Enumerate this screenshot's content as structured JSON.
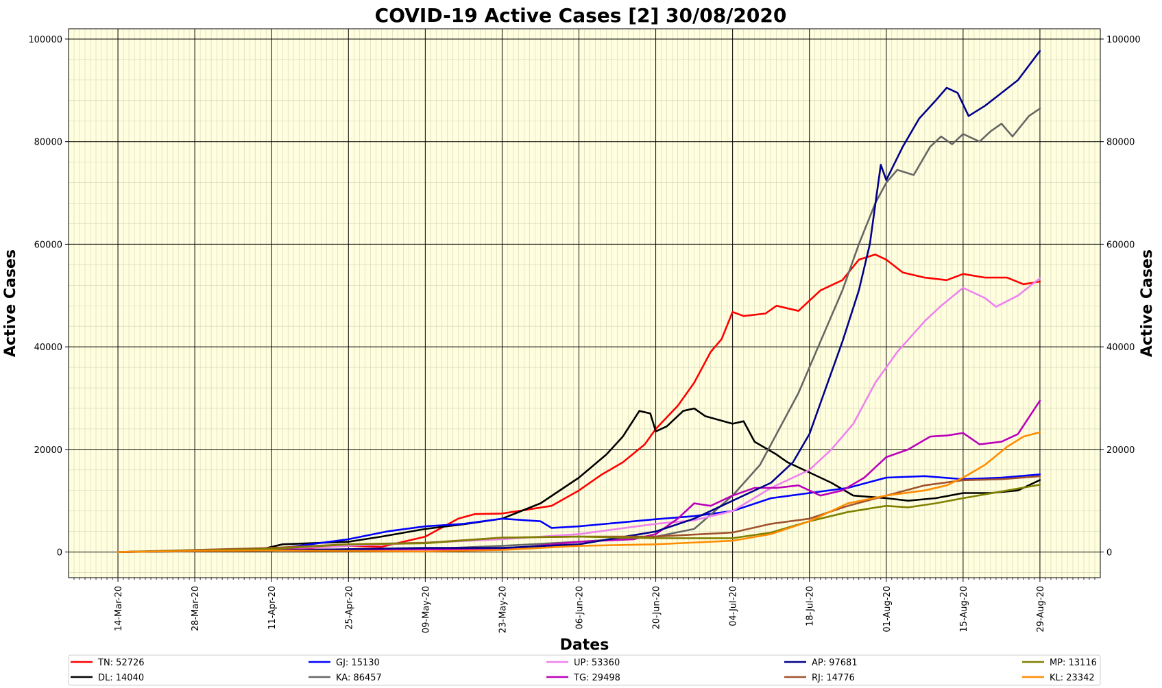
{
  "chart_data": {
    "type": "line",
    "title": "COVID-19 Active Cases [2] 30/08/2020",
    "xlabel": "Dates",
    "ylabel": "Active Cases",
    "ylabel_right": "Active Cases",
    "x_start": "2020-03-14",
    "x_end": "2020-08-29",
    "x_tick_labels": [
      "14-Mar-20",
      "28-Mar-20",
      "11-Apr-20",
      "25-Apr-20",
      "09-May-20",
      "23-May-20",
      "06-Jun-20",
      "20-Jun-20",
      "04-Jul-20",
      "18-Jul-20",
      "01-Aug-20",
      "15-Aug-20",
      "29-Aug-20"
    ],
    "y_ticks": [
      0,
      20000,
      40000,
      60000,
      80000,
      100000
    ],
    "ylim": [
      -5000,
      102000
    ],
    "background": "#ffffe0",
    "grid": true,
    "legend_position": "bottom",
    "series": [
      {
        "name": "TN: 52726",
        "color": "#ff0000",
        "points": [
          [
            "2020-03-14",
            0
          ],
          [
            "2020-04-11",
            500
          ],
          [
            "2020-04-25",
            1200
          ],
          [
            "2020-05-01",
            1000
          ],
          [
            "2020-05-09",
            3000
          ],
          [
            "2020-05-15",
            6500
          ],
          [
            "2020-05-18",
            7400
          ],
          [
            "2020-05-23",
            7500
          ],
          [
            "2020-06-01",
            9000
          ],
          [
            "2020-06-06",
            12000
          ],
          [
            "2020-06-10",
            15000
          ],
          [
            "2020-06-14",
            17500
          ],
          [
            "2020-06-18",
            21000
          ],
          [
            "2020-06-20",
            24000
          ],
          [
            "2020-06-24",
            28500
          ],
          [
            "2020-06-27",
            33000
          ],
          [
            "2020-06-30",
            39000
          ],
          [
            "2020-07-02",
            41500
          ],
          [
            "2020-07-04",
            46800
          ],
          [
            "2020-07-06",
            46000
          ],
          [
            "2020-07-10",
            46500
          ],
          [
            "2020-07-12",
            48000
          ],
          [
            "2020-07-16",
            47000
          ],
          [
            "2020-07-20",
            51000
          ],
          [
            "2020-07-24",
            53000
          ],
          [
            "2020-07-27",
            57000
          ],
          [
            "2020-07-30",
            58000
          ],
          [
            "2020-08-01",
            57000
          ],
          [
            "2020-08-04",
            54500
          ],
          [
            "2020-08-08",
            53500
          ],
          [
            "2020-08-12",
            53000
          ],
          [
            "2020-08-15",
            54200
          ],
          [
            "2020-08-19",
            53500
          ],
          [
            "2020-08-23",
            53500
          ],
          [
            "2020-08-26",
            52200
          ],
          [
            "2020-08-29",
            52726
          ]
        ]
      },
      {
        "name": "DL: 14040",
        "color": "#000000",
        "points": [
          [
            "2020-03-14",
            0
          ],
          [
            "2020-04-09",
            500
          ],
          [
            "2020-04-13",
            1500
          ],
          [
            "2020-04-25",
            2000
          ],
          [
            "2020-05-01",
            3000
          ],
          [
            "2020-05-09",
            4500
          ],
          [
            "2020-05-16",
            5400
          ],
          [
            "2020-05-23",
            6500
          ],
          [
            "2020-05-30",
            9500
          ],
          [
            "2020-06-06",
            14500
          ],
          [
            "2020-06-11",
            19000
          ],
          [
            "2020-06-14",
            22500
          ],
          [
            "2020-06-17",
            27500
          ],
          [
            "2020-06-19",
            27000
          ],
          [
            "2020-06-20",
            23500
          ],
          [
            "2020-06-22",
            24500
          ],
          [
            "2020-06-25",
            27500
          ],
          [
            "2020-06-27",
            28000
          ],
          [
            "2020-06-29",
            26500
          ],
          [
            "2020-07-04",
            25000
          ],
          [
            "2020-07-06",
            25500
          ],
          [
            "2020-07-08",
            21500
          ],
          [
            "2020-07-12",
            19000
          ],
          [
            "2020-07-14",
            17500
          ],
          [
            "2020-07-18",
            15500
          ],
          [
            "2020-07-22",
            13500
          ],
          [
            "2020-07-26",
            11000
          ],
          [
            "2020-08-01",
            10500
          ],
          [
            "2020-08-05",
            10000
          ],
          [
            "2020-08-10",
            10500
          ],
          [
            "2020-08-15",
            11500
          ],
          [
            "2020-08-20",
            11500
          ],
          [
            "2020-08-25",
            12000
          ],
          [
            "2020-08-29",
            14040
          ]
        ]
      },
      {
        "name": "GJ: 15130",
        "color": "#0000ff",
        "points": [
          [
            "2020-03-14",
            0
          ],
          [
            "2020-04-11",
            500
          ],
          [
            "2020-04-25",
            2500
          ],
          [
            "2020-05-02",
            4000
          ],
          [
            "2020-05-09",
            5000
          ],
          [
            "2020-05-16",
            5500
          ],
          [
            "2020-05-23",
            6500
          ],
          [
            "2020-05-30",
            6000
          ],
          [
            "2020-06-01",
            4700
          ],
          [
            "2020-06-06",
            5000
          ],
          [
            "2020-06-13",
            5700
          ],
          [
            "2020-06-20",
            6400
          ],
          [
            "2020-06-27",
            7000
          ],
          [
            "2020-07-04",
            8000
          ],
          [
            "2020-07-11",
            10500
          ],
          [
            "2020-07-18",
            11500
          ],
          [
            "2020-07-25",
            12500
          ],
          [
            "2020-08-01",
            14500
          ],
          [
            "2020-08-08",
            14800
          ],
          [
            "2020-08-15",
            14200
          ],
          [
            "2020-08-22",
            14500
          ],
          [
            "2020-08-29",
            15130
          ]
        ]
      },
      {
        "name": "KA: 86457",
        "color": "#666666",
        "points": [
          [
            "2020-03-14",
            0
          ],
          [
            "2020-04-11",
            300
          ],
          [
            "2020-05-09",
            600
          ],
          [
            "2020-05-23",
            1200
          ],
          [
            "2020-06-06",
            2000
          ],
          [
            "2020-06-20",
            3000
          ],
          [
            "2020-06-27",
            4500
          ],
          [
            "2020-07-04",
            11000
          ],
          [
            "2020-07-09",
            17000
          ],
          [
            "2020-07-13",
            25000
          ],
          [
            "2020-07-16",
            31000
          ],
          [
            "2020-07-20",
            41000
          ],
          [
            "2020-07-24",
            51000
          ],
          [
            "2020-07-27",
            60000
          ],
          [
            "2020-07-30",
            68000
          ],
          [
            "2020-08-01",
            72000
          ],
          [
            "2020-08-03",
            74500
          ],
          [
            "2020-08-06",
            73500
          ],
          [
            "2020-08-09",
            79000
          ],
          [
            "2020-08-11",
            81000
          ],
          [
            "2020-08-13",
            79500
          ],
          [
            "2020-08-15",
            81500
          ],
          [
            "2020-08-18",
            80000
          ],
          [
            "2020-08-20",
            82000
          ],
          [
            "2020-08-22",
            83500
          ],
          [
            "2020-08-24",
            81000
          ],
          [
            "2020-08-27",
            85000
          ],
          [
            "2020-08-29",
            86457
          ]
        ]
      },
      {
        "name": "UP: 53360",
        "color": "#ee82ee",
        "points": [
          [
            "2020-03-14",
            0
          ],
          [
            "2020-04-11",
            600
          ],
          [
            "2020-05-09",
            1800
          ],
          [
            "2020-05-23",
            2500
          ],
          [
            "2020-06-06",
            3500
          ],
          [
            "2020-06-20",
            5500
          ],
          [
            "2020-06-27",
            6200
          ],
          [
            "2020-07-04",
            8000
          ],
          [
            "2020-07-11",
            12500
          ],
          [
            "2020-07-18",
            16000
          ],
          [
            "2020-07-22",
            20000
          ],
          [
            "2020-07-26",
            25000
          ],
          [
            "2020-07-30",
            33000
          ],
          [
            "2020-08-03",
            39000
          ],
          [
            "2020-08-08",
            45000
          ],
          [
            "2020-08-11",
            48000
          ],
          [
            "2020-08-15",
            51500
          ],
          [
            "2020-08-19",
            49500
          ],
          [
            "2020-08-21",
            47800
          ],
          [
            "2020-08-25",
            50000
          ],
          [
            "2020-08-29",
            53360
          ]
        ]
      },
      {
        "name": "TG: 29498",
        "color": "#bb00bb",
        "points": [
          [
            "2020-03-14",
            0
          ],
          [
            "2020-04-11",
            500
          ],
          [
            "2020-05-09",
            500
          ],
          [
            "2020-05-23",
            500
          ],
          [
            "2020-06-06",
            2000
          ],
          [
            "2020-06-16",
            2500
          ],
          [
            "2020-06-20",
            3500
          ],
          [
            "2020-06-24",
            6500
          ],
          [
            "2020-06-27",
            9500
          ],
          [
            "2020-06-30",
            9000
          ],
          [
            "2020-07-04",
            11000
          ],
          [
            "2020-07-08",
            12500
          ],
          [
            "2020-07-12",
            12500
          ],
          [
            "2020-07-16",
            13000
          ],
          [
            "2020-07-20",
            11000
          ],
          [
            "2020-07-24",
            12000
          ],
          [
            "2020-07-28",
            14500
          ],
          [
            "2020-08-01",
            18500
          ],
          [
            "2020-08-05",
            20000
          ],
          [
            "2020-08-09",
            22500
          ],
          [
            "2020-08-12",
            22700
          ],
          [
            "2020-08-15",
            23200
          ],
          [
            "2020-08-18",
            21000
          ],
          [
            "2020-08-22",
            21500
          ],
          [
            "2020-08-25",
            23000
          ],
          [
            "2020-08-29",
            29498
          ]
        ]
      },
      {
        "name": "AP: 97681",
        "color": "#00008b",
        "points": [
          [
            "2020-03-14",
            0
          ],
          [
            "2020-04-11",
            300
          ],
          [
            "2020-05-09",
            800
          ],
          [
            "2020-05-23",
            800
          ],
          [
            "2020-06-06",
            1500
          ],
          [
            "2020-06-20",
            4000
          ],
          [
            "2020-06-27",
            6500
          ],
          [
            "2020-07-04",
            10000
          ],
          [
            "2020-07-11",
            13500
          ],
          [
            "2020-07-15",
            17500
          ],
          [
            "2020-07-18",
            23000
          ],
          [
            "2020-07-21",
            32000
          ],
          [
            "2020-07-24",
            41000
          ],
          [
            "2020-07-27",
            51000
          ],
          [
            "2020-07-29",
            60000
          ],
          [
            "2020-07-31",
            75500
          ],
          [
            "2020-08-01",
            72500
          ],
          [
            "2020-08-04",
            79000
          ],
          [
            "2020-08-07",
            84500
          ],
          [
            "2020-08-10",
            88000
          ],
          [
            "2020-08-12",
            90500
          ],
          [
            "2020-08-14",
            89500
          ],
          [
            "2020-08-16",
            85000
          ],
          [
            "2020-08-19",
            87000
          ],
          [
            "2020-08-22",
            89500
          ],
          [
            "2020-08-25",
            92000
          ],
          [
            "2020-08-29",
            97681
          ]
        ]
      },
      {
        "name": "RJ: 14776",
        "color": "#a0522d",
        "points": [
          [
            "2020-03-14",
            0
          ],
          [
            "2020-04-11",
            800
          ],
          [
            "2020-04-25",
            1500
          ],
          [
            "2020-05-09",
            1800
          ],
          [
            "2020-05-23",
            2800
          ],
          [
            "2020-06-06",
            3000
          ],
          [
            "2020-06-20",
            3000
          ],
          [
            "2020-07-04",
            3800
          ],
          [
            "2020-07-11",
            5500
          ],
          [
            "2020-07-18",
            6500
          ],
          [
            "2020-07-25",
            9000
          ],
          [
            "2020-08-01",
            11000
          ],
          [
            "2020-08-08",
            13000
          ],
          [
            "2020-08-15",
            14000
          ],
          [
            "2020-08-22",
            14200
          ],
          [
            "2020-08-29",
            14776
          ]
        ]
      },
      {
        "name": "MP: 13116",
        "color": "#808000",
        "points": [
          [
            "2020-03-14",
            0
          ],
          [
            "2020-04-11",
            600
          ],
          [
            "2020-04-25",
            1500
          ],
          [
            "2020-05-09",
            1700
          ],
          [
            "2020-05-23",
            2800
          ],
          [
            "2020-06-06",
            3000
          ],
          [
            "2020-06-20",
            2700
          ],
          [
            "2020-07-04",
            2700
          ],
          [
            "2020-07-11",
            3800
          ],
          [
            "2020-07-18",
            6000
          ],
          [
            "2020-07-25",
            7800
          ],
          [
            "2020-08-01",
            9000
          ],
          [
            "2020-08-05",
            8700
          ],
          [
            "2020-08-10",
            9500
          ],
          [
            "2020-08-15",
            10500
          ],
          [
            "2020-08-22",
            11800
          ],
          [
            "2020-08-29",
            13116
          ]
        ]
      },
      {
        "name": "KL: 23342",
        "color": "#ff8c00",
        "points": [
          [
            "2020-03-14",
            0
          ],
          [
            "2020-03-28",
            200
          ],
          [
            "2020-04-11",
            300
          ],
          [
            "2020-05-09",
            100
          ],
          [
            "2020-05-23",
            400
          ],
          [
            "2020-06-06",
            1200
          ],
          [
            "2020-06-20",
            1500
          ],
          [
            "2020-07-04",
            2200
          ],
          [
            "2020-07-11",
            3500
          ],
          [
            "2020-07-18",
            6000
          ],
          [
            "2020-07-25",
            9500
          ],
          [
            "2020-08-01",
            11000
          ],
          [
            "2020-08-08",
            12000
          ],
          [
            "2020-08-12",
            13000
          ],
          [
            "2020-08-15",
            14500
          ],
          [
            "2020-08-19",
            17000
          ],
          [
            "2020-08-23",
            20500
          ],
          [
            "2020-08-26",
            22500
          ],
          [
            "2020-08-29",
            23342
          ]
        ]
      }
    ]
  }
}
